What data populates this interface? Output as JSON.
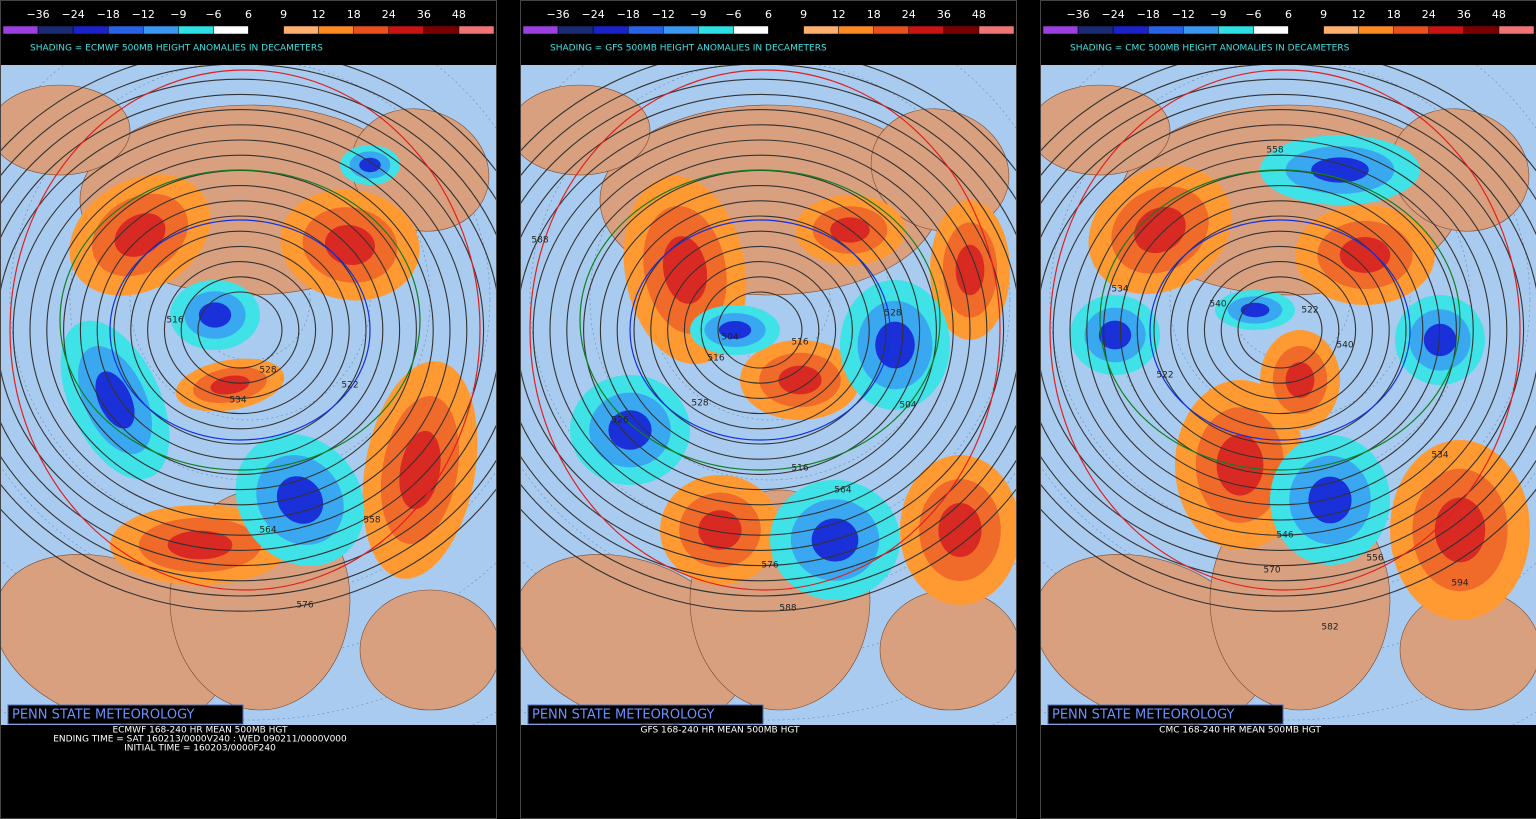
{
  "colorbar": {
    "labels": [
      "−36",
      "−24",
      "−18",
      "−12",
      "−9",
      "−6",
      "6",
      "9",
      "12",
      "18",
      "24",
      "36",
      "48"
    ],
    "colors": [
      "#9b3fe0",
      "#1c2a74",
      "#1a22c8",
      "#2a62e6",
      "#3a98f2",
      "#2ee0e4",
      "#ffffff",
      "#000000",
      "#ffb070",
      "#ff8a24",
      "#e8501e",
      "#c81414",
      "#7a0000",
      "#f07474"
    ]
  },
  "panels": [
    {
      "shading_title": "SHADING = ECMWF 500MB HEIGHT ANOMALIES IN DECAMETERS",
      "credit": "PENN STATE METEOROLOGY",
      "footer": [
        "ECMWF 168-240 HR MEAN 500MB HGT",
        "ENDING TIME = SAT 160213/0000V240 : WED 090211/0000V000",
        "INITIAL TIME = 160203/0000F240"
      ],
      "contour_labels": [
        "516",
        "528",
        "534",
        "522",
        "558",
        "564",
        "576"
      ]
    },
    {
      "shading_title": "SHADING = GFS 500MB HEIGHT ANOMALIES IN DECAMETERS",
      "credit": "PENN STATE METEOROLOGY",
      "footer": [
        "GFS 168-240 HR MEAN 500MB HGT"
      ],
      "contour_labels": [
        "588",
        "504",
        "516",
        "528",
        "526",
        "516",
        "528",
        "504",
        "516",
        "564",
        "576",
        "588"
      ]
    },
    {
      "shading_title": "SHADING = CMC 500MB HEIGHT ANOMALIES IN DECAMETERS",
      "credit": "PENN STATE METEOROLOGY",
      "footer": [
        "CMC 168-240 HR MEAN 500MB HGT"
      ],
      "contour_labels": [
        "558",
        "534",
        "540",
        "522",
        "540",
        "522",
        "534",
        "546",
        "570",
        "556",
        "582",
        "594"
      ]
    }
  ]
}
